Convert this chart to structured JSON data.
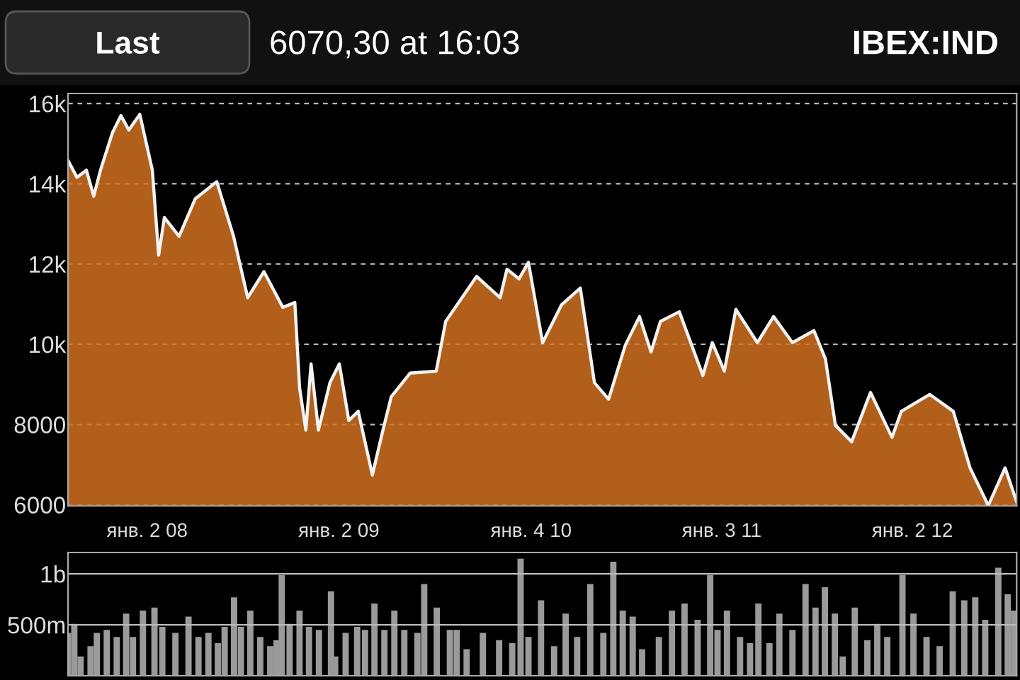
{
  "chart_data": [
    {
      "type": "area",
      "title": "IBEX:IND",
      "subtitle": "6070,30 at 16:03",
      "annotations": [
        "Last"
      ],
      "x": [
        "2007-08-04",
        "2007-08-21",
        "2007-09-08",
        "2007-09-22",
        "2007-10-05",
        "2007-10-28",
        "2007-11-13",
        "2007-11-28",
        "2007-12-19",
        "2008-01-12",
        "2008-01-24",
        "2008-02-04",
        "2008-03-03",
        "2008-04-03",
        "2008-05-14",
        "2008-06-15",
        "2008-07-12",
        "2008-08-12",
        "2008-09-17",
        "2008-10-10",
        "2008-10-19",
        "2008-10-31",
        "2008-11-10",
        "2008-11-24",
        "2008-12-16",
        "2009-01-03",
        "2009-01-21",
        "2009-02-08",
        "2009-03-07",
        "2009-03-25",
        "2009-04-12",
        "2009-05-18",
        "2009-07-07",
        "2009-07-25",
        "2009-09-22",
        "2009-11-06",
        "2009-11-19",
        "2009-12-12",
        "2009-12-30",
        "2010-01-26",
        "2010-03-03",
        "2010-04-08",
        "2010-05-05",
        "2010-06-01",
        "2010-07-03",
        "2010-07-30",
        "2010-08-21",
        "2010-09-08",
        "2010-10-14",
        "2010-11-28",
        "2010-12-16",
        "2011-01-08",
        "2011-01-30",
        "2011-03-12",
        "2011-04-12",
        "2011-05-18",
        "2011-06-28",
        "2011-07-20",
        "2011-08-08",
        "2011-09-08",
        "2011-10-14",
        "2011-11-24",
        "2011-12-12",
        "2012-02-04",
        "2012-03-20",
        "2012-04-21",
        "2012-05-26",
        "2012-06-27",
        "2012-07-19"
      ],
      "series": [
        {
          "color": "#d0701e",
          "values": [
            14580,
            14160,
            14340,
            13690,
            14340,
            15280,
            15700,
            15340,
            15730,
            14340,
            12220,
            13160,
            12690,
            13630,
            14050,
            12690,
            11160,
            11810,
            10920,
            11040,
            8920,
            7860,
            9510,
            7860,
            9040,
            9510,
            8100,
            8330,
            6740,
            7740,
            8690,
            9280,
            9330,
            10570,
            11690,
            11160,
            11870,
            11630,
            12040,
            10040,
            10980,
            11400,
            9040,
            8630,
            9980,
            10690,
            9810,
            10570,
            10810,
            9220,
            10040,
            9330,
            10870,
            10040,
            10690,
            10040,
            10340,
            9630,
            7980,
            7570,
            8800,
            7680,
            8330,
            8750,
            8330,
            6920,
            5980,
            6920,
            6070
          ]
        }
      ],
      "xlim": [
        "2007-08-04",
        "2012-07-19"
      ],
      "xticks": [
        {
          "value": "2008-01-02",
          "label": "янв. 2 08"
        },
        {
          "value": "2009-01-02",
          "label": "янв. 2 09"
        },
        {
          "value": "2010-01-04",
          "label": "янв. 4 10"
        },
        {
          "value": "2011-01-03",
          "label": "янв. 3 11"
        },
        {
          "value": "2012-01-02",
          "label": "янв. 2 12"
        }
      ],
      "ylim": [
        5970,
        16250
      ],
      "yticks": [
        6000,
        8000,
        {
          "value": 10000,
          "label": "10k"
        },
        {
          "value": 12000,
          "label": "12k"
        },
        {
          "value": 14000,
          "label": "14k"
        },
        {
          "value": 16000,
          "label": "16k"
        }
      ],
      "grid": "y",
      "line_style": "dashed"
    },
    {
      "type": "bar",
      "tick_labels": "y",
      "x": [
        "2007-08-04",
        "2007-08-16",
        "2007-08-28",
        "2007-09-16",
        "2007-09-28",
        "2007-10-17",
        "2007-11-05",
        "2007-11-23",
        "2007-12-06",
        "2007-12-25",
        "2008-01-16",
        "2008-01-31",
        "2008-02-25",
        "2008-03-21",
        "2008-04-09",
        "2008-04-28",
        "2008-05-16",
        "2008-05-29",
        "2008-06-16",
        "2008-06-29",
        "2008-07-17",
        "2008-08-05",
        "2008-08-24",
        "2008-09-05",
        "2008-09-15",
        "2008-09-30",
        "2008-10-19",
        "2008-11-06",
        "2008-11-25",
        "2008-12-18",
        "2008-12-26",
        "2009-01-15",
        "2009-02-06",
        "2009-02-21",
        "2009-03-11",
        "2009-03-30",
        "2009-04-18",
        "2009-05-07",
        "2009-06-01",
        "2009-06-14",
        "2009-07-08",
        "2009-08-02",
        "2009-08-15",
        "2009-09-03",
        "2009-10-04",
        "2009-11-04",
        "2009-11-29",
        "2009-12-15",
        "2009-12-30",
        "2010-01-23",
        "2010-02-17",
        "2010-03-11",
        "2010-04-02",
        "2010-04-27",
        "2010-05-22",
        "2010-06-10",
        "2010-06-28",
        "2010-07-17",
        "2010-08-04",
        "2010-09-05",
        "2010-09-30",
        "2010-10-24",
        "2010-11-18",
        "2010-12-12",
        "2010-12-26",
        "2011-01-13",
        "2011-02-07",
        "2011-02-26",
        "2011-03-14",
        "2011-04-04",
        "2011-04-23",
        "2011-05-18",
        "2011-06-12",
        "2011-07-01",
        "2011-07-19",
        "2011-08-07",
        "2011-08-22",
        "2011-09-14",
        "2011-10-08",
        "2011-10-27",
        "2011-11-15",
        "2011-12-14",
        "2012-01-04",
        "2012-01-29",
        "2012-02-23",
        "2012-03-19",
        "2012-04-10",
        "2012-05-01",
        "2012-05-20",
        "2012-06-14",
        "2012-07-02",
        "2012-07-14"
      ],
      "series": [
        {
          "color": "#9a9a9a",
          "values": [
            420000000,
            510000000,
            190000000,
            290000000,
            420000000,
            450000000,
            380000000,
            610000000,
            380000000,
            640000000,
            670000000,
            480000000,
            420000000,
            580000000,
            380000000,
            420000000,
            320000000,
            480000000,
            770000000,
            480000000,
            640000000,
            380000000,
            290000000,
            350000000,
            990000000,
            510000000,
            640000000,
            480000000,
            450000000,
            830000000,
            190000000,
            420000000,
            480000000,
            450000000,
            710000000,
            450000000,
            640000000,
            450000000,
            420000000,
            900000000,
            670000000,
            450000000,
            450000000,
            260000000,
            420000000,
            350000000,
            320000000,
            1150000000,
            380000000,
            740000000,
            290000000,
            610000000,
            380000000,
            900000000,
            420000000,
            1120000000,
            640000000,
            580000000,
            260000000,
            380000000,
            640000000,
            710000000,
            550000000,
            990000000,
            450000000,
            640000000,
            380000000,
            320000000,
            710000000,
            320000000,
            610000000,
            450000000,
            900000000,
            670000000,
            870000000,
            610000000,
            190000000,
            670000000,
            350000000,
            510000000,
            380000000,
            990000000,
            610000000,
            380000000,
            290000000,
            830000000,
            740000000,
            770000000,
            550000000,
            1060000000,
            800000000,
            640000000
          ]
        }
      ],
      "xlim": [
        "2007-08-04",
        "2012-07-19"
      ],
      "ylim": [
        0,
        1210000000
      ],
      "yticks": [
        {
          "value": 500000000,
          "label": "500m"
        },
        {
          "value": 1000000000,
          "label": "1b"
        }
      ],
      "grid": "y"
    }
  ]
}
